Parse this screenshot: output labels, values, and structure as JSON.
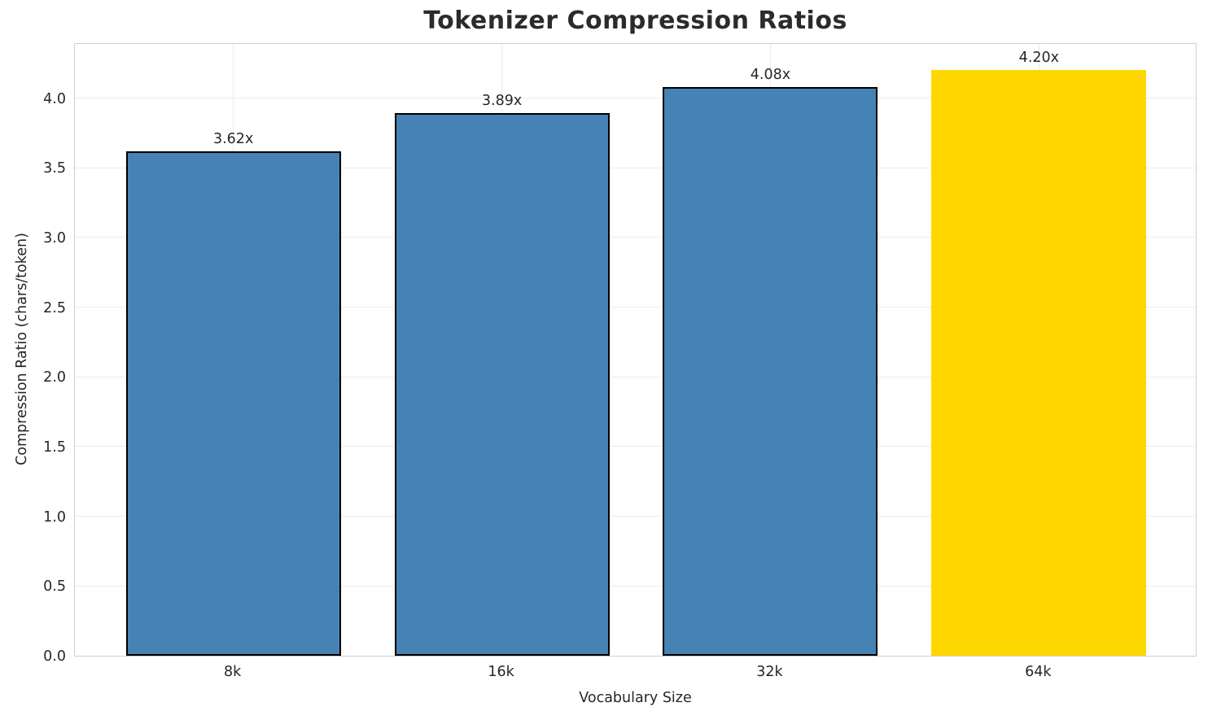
{
  "chart_data": {
    "type": "bar",
    "title": "Tokenizer Compression Ratios",
    "xlabel": "Vocabulary Size",
    "ylabel": "Compression Ratio (chars/token)",
    "categories": [
      "8k",
      "16k",
      "32k",
      "64k"
    ],
    "values": [
      3.62,
      3.89,
      4.08,
      4.2
    ],
    "bar_labels": [
      "3.62x",
      "3.89x",
      "4.08x",
      "4.20x"
    ],
    "bar_colors": [
      "#4682B4",
      "#4682B4",
      "#4682B4",
      "#FFD700"
    ],
    "bar_has_edge": [
      true,
      true,
      true,
      false
    ],
    "ylim": [
      0,
      4.4
    ],
    "xlim": [
      -0.59,
      3.59
    ],
    "bar_width_units": 0.8,
    "yticks": [
      0.0,
      0.5,
      1.0,
      1.5,
      2.0,
      2.5,
      3.0,
      3.5,
      4.0
    ],
    "ytick_labels": [
      "0.0",
      "0.5",
      "1.0",
      "1.5",
      "2.0",
      "2.5",
      "3.0",
      "3.5",
      "4.0"
    ],
    "grid": true,
    "grid_axes": "both",
    "legend": null,
    "colors": {
      "bar_default": "#4682B4",
      "bar_highlight": "#FFD700",
      "bar_edge": "#000000",
      "grid": "#ececec",
      "spine": "#cfcfcf",
      "text": "#262626",
      "title_text": "#2b2b2b",
      "background": "#ffffff"
    }
  }
}
